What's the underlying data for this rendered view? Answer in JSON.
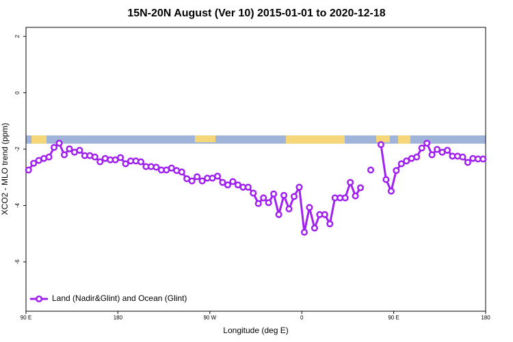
{
  "chart_data": {
    "type": "line",
    "title": "15N-20N August (Ver 10)   2015-01-01 to 2020-12-18",
    "x_label": "Longitude (deg E)",
    "y_label": "XCO2 - MLO trend (ppm)",
    "xlim": [
      90,
      540
    ],
    "ylim": [
      -7.75,
      2.32
    ],
    "xticks": [
      {
        "value": 90,
        "label": "90 E"
      },
      180,
      {
        "value": 270,
        "label": "90 W"
      },
      {
        "value": 360,
        "label": "0"
      },
      {
        "value": 450,
        "label": "90 E"
      },
      {
        "value": 540,
        "label": "180"
      }
    ],
    "yticks": [
      2,
      0,
      -2,
      -4,
      -6
    ],
    "legend": "bottom-left",
    "x": [
      92.5,
      97.5,
      102.5,
      107.5,
      112.5,
      117.5,
      122.5,
      127.5,
      132.5,
      137.5,
      142.5,
      147.5,
      152.5,
      157.5,
      162.5,
      167.5,
      172.5,
      177.5,
      182.5,
      187.5,
      192.5,
      197.5,
      202.5,
      207.5,
      212.5,
      217.5,
      222.5,
      227.5,
      232.5,
      237.5,
      242.5,
      247.5,
      252.5,
      257.5,
      262.5,
      267.5,
      272.5,
      277.5,
      282.5,
      287.5,
      292.5,
      297.5,
      302.5,
      307.5,
      312.5,
      317.5,
      322.5,
      327.5,
      332.5,
      337.5,
      342.5,
      347.5,
      352.5,
      357.5,
      362.5,
      367.5,
      372.5,
      377.5,
      382.5,
      387.5,
      392.5,
      397.5,
      402.5,
      407.5,
      412.5,
      417.5,
      422.5,
      427.5,
      432.5,
      437.5,
      442.5,
      447.5,
      452.5,
      457.5,
      462.5,
      467.5,
      472.5,
      477.5,
      482.5,
      487.5,
      492.5,
      497.5,
      502.5,
      507.5,
      512.5,
      517.5,
      522.5,
      527.5,
      532.5,
      537.5
    ],
    "series": [
      {
        "name": "Land (Nadir&Glint) and Ocean (Glint)",
        "color": "#a020f0",
        "values": [
          -2.74,
          -2.5,
          -2.4,
          -2.33,
          -2.28,
          -1.94,
          -1.79,
          -2.2,
          -1.99,
          -2.11,
          -2.04,
          -2.23,
          -2.23,
          -2.28,
          -2.45,
          -2.33,
          -2.38,
          -2.38,
          -2.3,
          -2.52,
          -2.42,
          -2.42,
          -2.45,
          -2.62,
          -2.62,
          -2.64,
          -2.74,
          -2.74,
          -2.67,
          -2.76,
          -2.81,
          -3.05,
          -3.13,
          -2.98,
          -3.13,
          -3.03,
          -3.03,
          -2.96,
          -3.18,
          -3.27,
          -3.15,
          -3.27,
          -3.35,
          -3.35,
          -3.56,
          -3.93,
          -3.73,
          -3.9,
          -3.59,
          -4.32,
          -3.64,
          -4.12,
          -3.68,
          -3.35,
          -4.95,
          -4.07,
          -4.8,
          -4.32,
          -4.32,
          -4.65,
          -3.73,
          -3.73,
          -3.73,
          -3.18,
          -3.66,
          -3.37,
          null,
          -2.74,
          null,
          -1.84,
          -3.08,
          -3.49,
          -2.76,
          -2.52,
          -2.42,
          -2.33,
          -2.28,
          -1.96,
          -1.79,
          -2.2,
          -2.01,
          -2.11,
          -2.04,
          -2.25,
          -2.25,
          -2.28,
          -2.47,
          -2.33,
          -2.35,
          -2.35
        ]
      }
    ]
  }
}
